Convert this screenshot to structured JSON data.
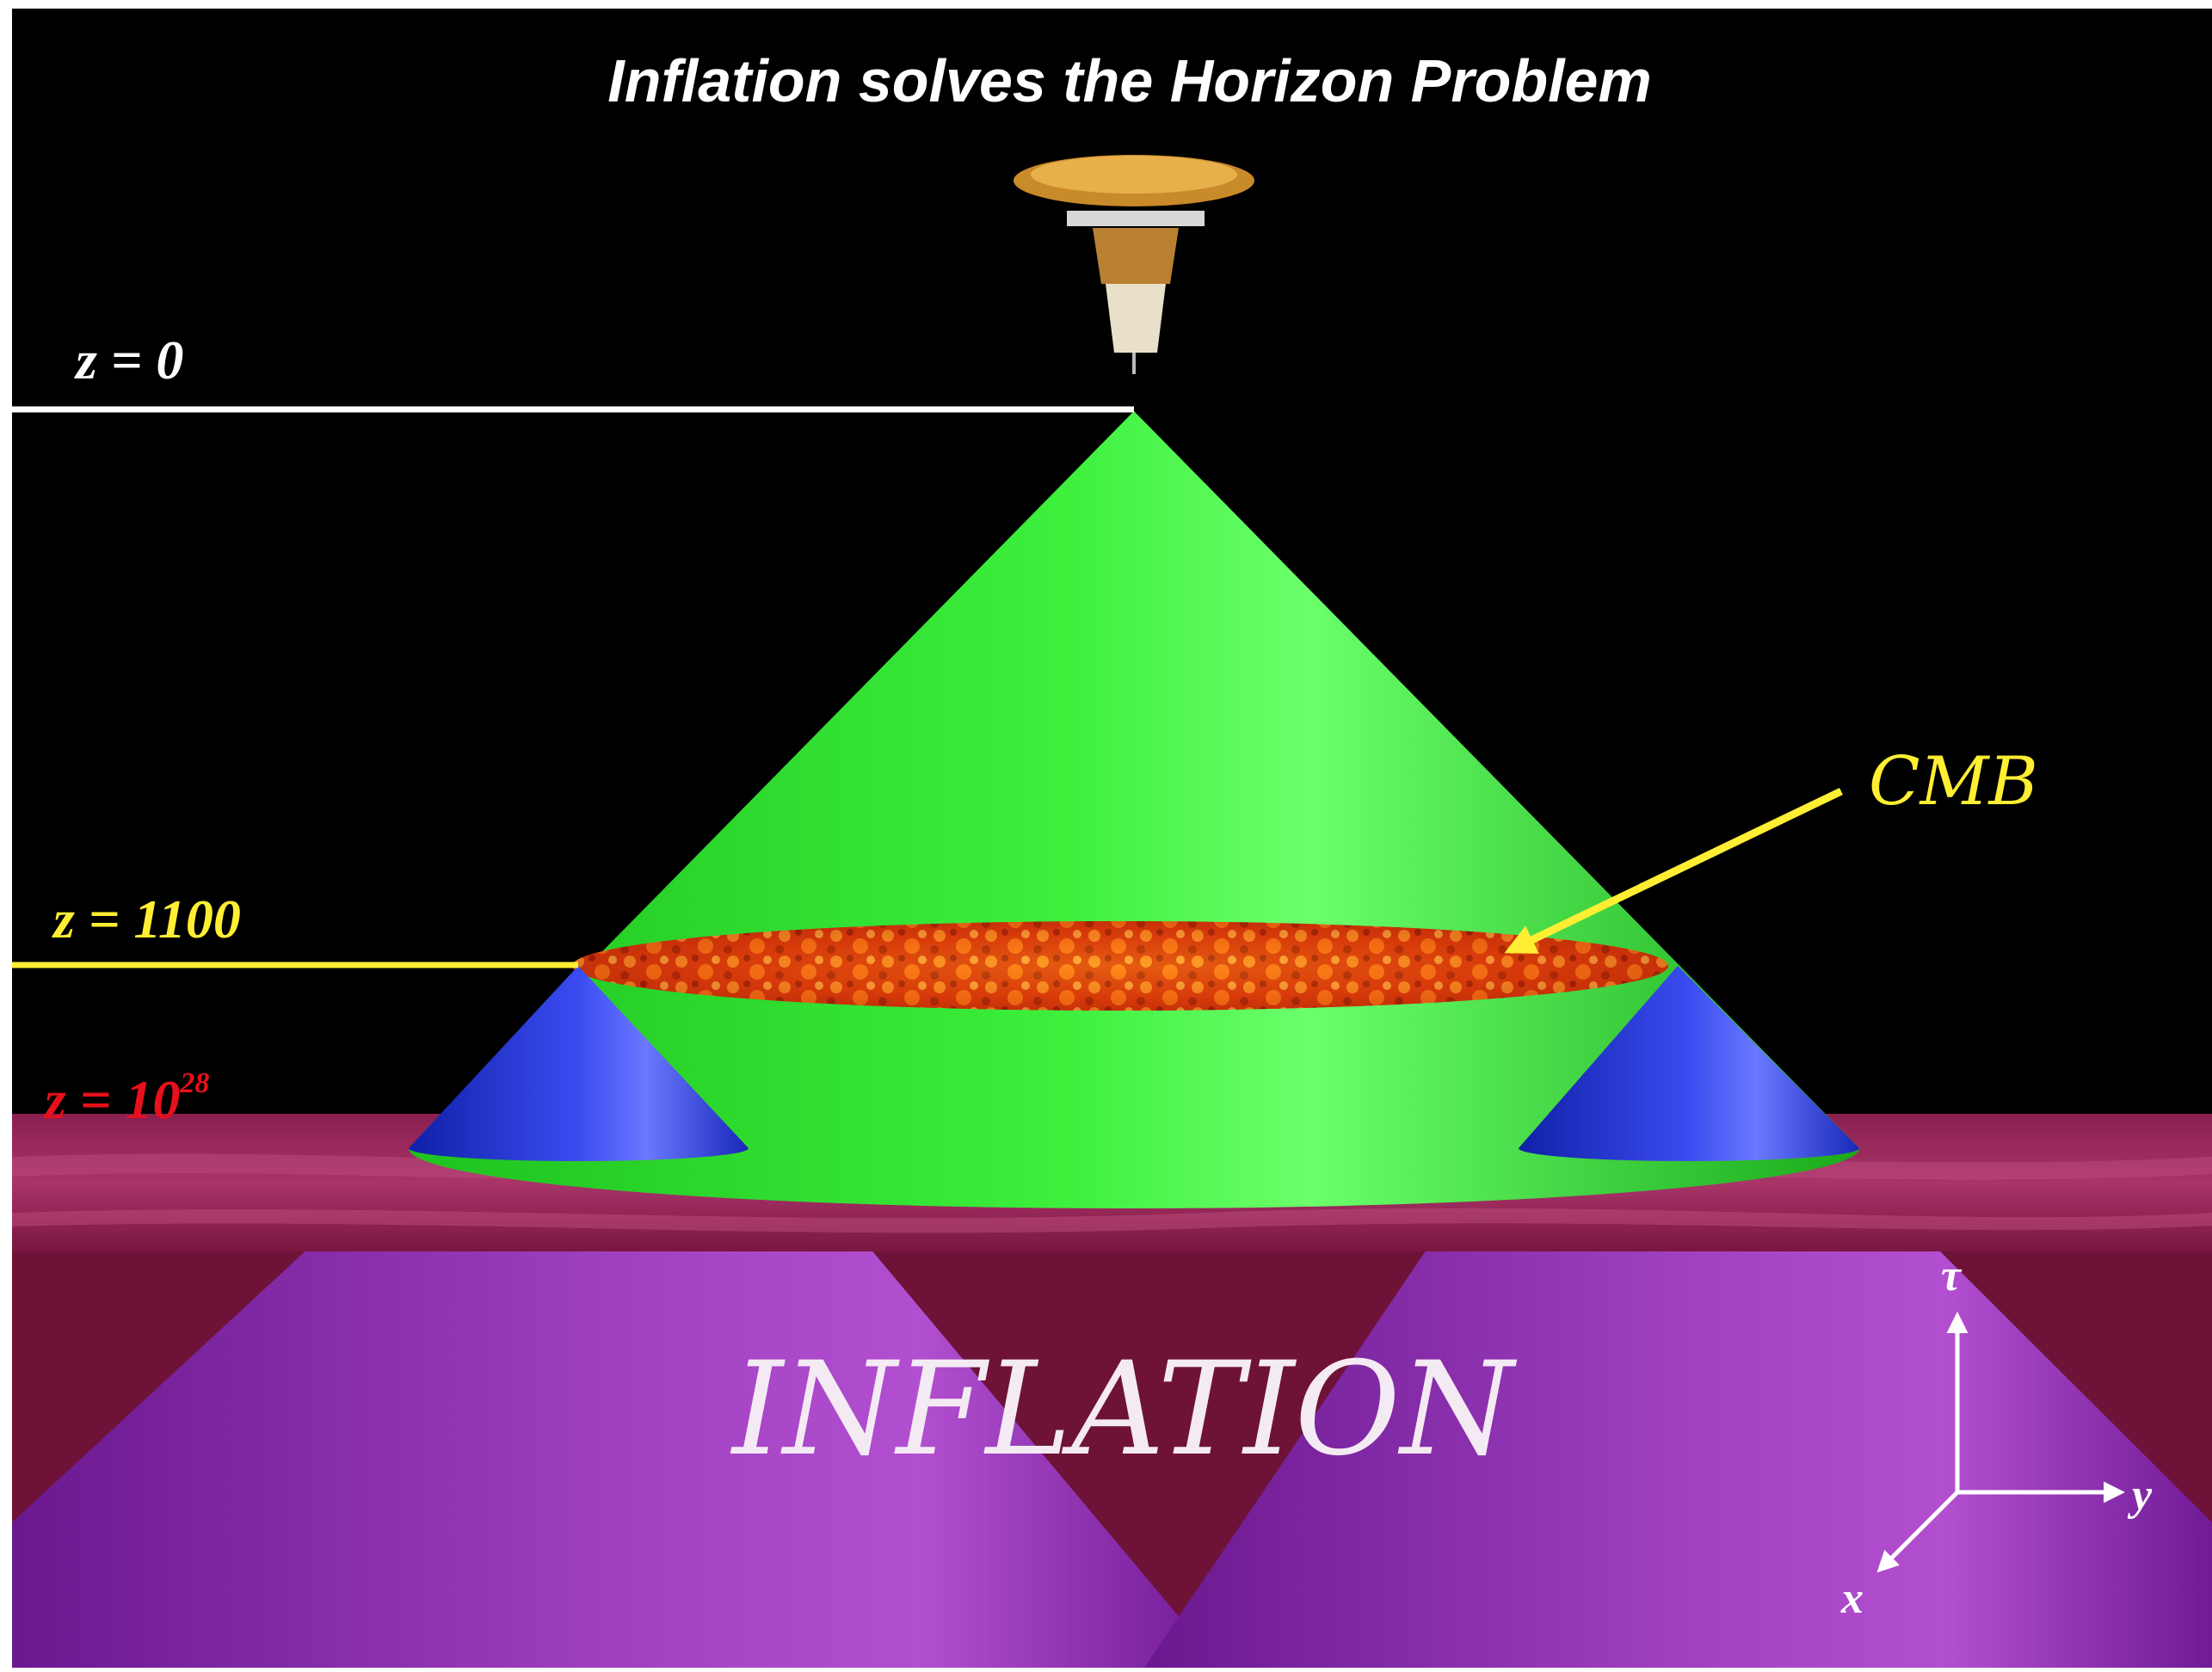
{
  "title": "Inflation solves the Horizon Problem",
  "labels": {
    "z0": "z = 0",
    "z1100": "z = 1100",
    "z_inflation_base": "z = 10",
    "z_inflation_exp": "28",
    "cmb": "CMB",
    "inflation": "INFLATION"
  },
  "axes": {
    "tau": "τ",
    "x": "x",
    "y": "y"
  },
  "colors": {
    "background": "#000000",
    "z0_line": "#ffffff",
    "z1100_line": "#ffee33",
    "z_inflation_label": "#e8101a",
    "cmb_label": "#ffee33",
    "big_cone": "#33ee33",
    "small_cones": "#2233cc",
    "floor": "#7a1640",
    "inflation_cones": "#8e2aa8"
  },
  "icons": {
    "satellite": "satellite-icon"
  }
}
